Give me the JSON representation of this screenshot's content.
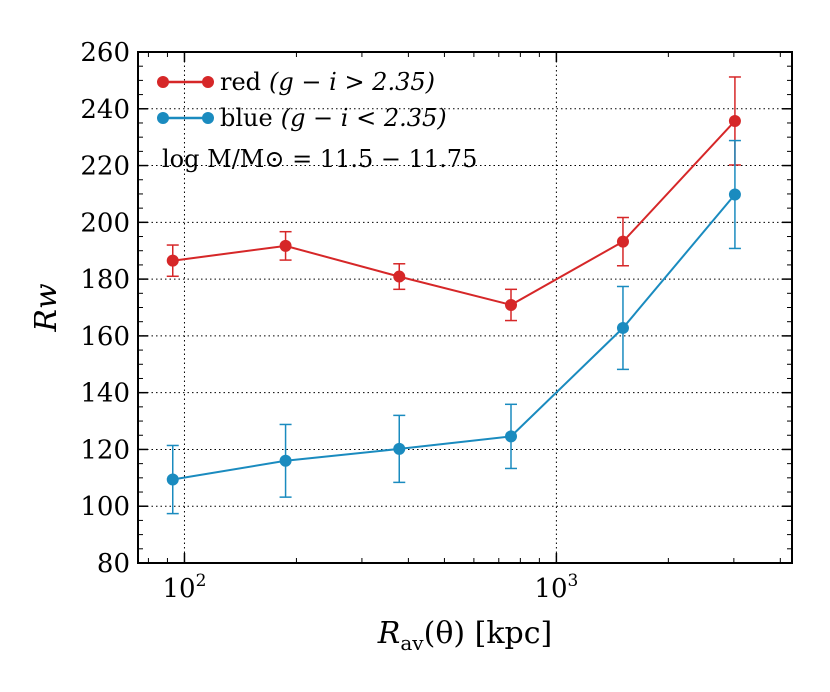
{
  "chart_data": {
    "type": "line",
    "xscale": "log",
    "xlim": [
      75,
      4300
    ],
    "ylim": [
      80,
      260
    ],
    "yticks": [
      80,
      100,
      120,
      140,
      160,
      180,
      200,
      220,
      240,
      260
    ],
    "ytick_labels": [
      "80",
      "100",
      "120",
      "140",
      "160",
      "180",
      "200",
      "220",
      "240",
      "260"
    ],
    "xticks": [
      {
        "value": 100,
        "base": "10",
        "exp": "2"
      },
      {
        "value": 1000,
        "base": "10",
        "exp": "3"
      }
    ],
    "grid": true,
    "xlabel": {
      "main": "R",
      "sub": "av",
      "rest": "(θ) [kpc]"
    },
    "ylabel": "Rw",
    "series": [
      {
        "name": "red",
        "color": "#d62728",
        "label_plain": "red",
        "label_math": "(g − i > 2.35)",
        "x": [
          93,
          187,
          378,
          755,
          1510,
          3020
        ],
        "y": [
          186.5,
          191.7,
          180.9,
          170.9,
          193.2,
          235.7
        ],
        "err": [
          5.5,
          5.0,
          4.5,
          5.5,
          8.5,
          15.5
        ]
      },
      {
        "name": "blue",
        "color": "#1a8bbf",
        "label_plain": "blue",
        "label_math": "(g − i < 2.35)",
        "x": [
          93,
          187,
          378,
          755,
          1510,
          3020
        ],
        "y": [
          109.4,
          116.0,
          120.2,
          124.6,
          162.8,
          209.8
        ],
        "err": [
          12.0,
          12.8,
          11.8,
          11.3,
          14.6,
          19.0
        ]
      }
    ],
    "annotation": "log M/M⊙ = 11.5 − 11.75",
    "legend_loc": "top-left"
  }
}
